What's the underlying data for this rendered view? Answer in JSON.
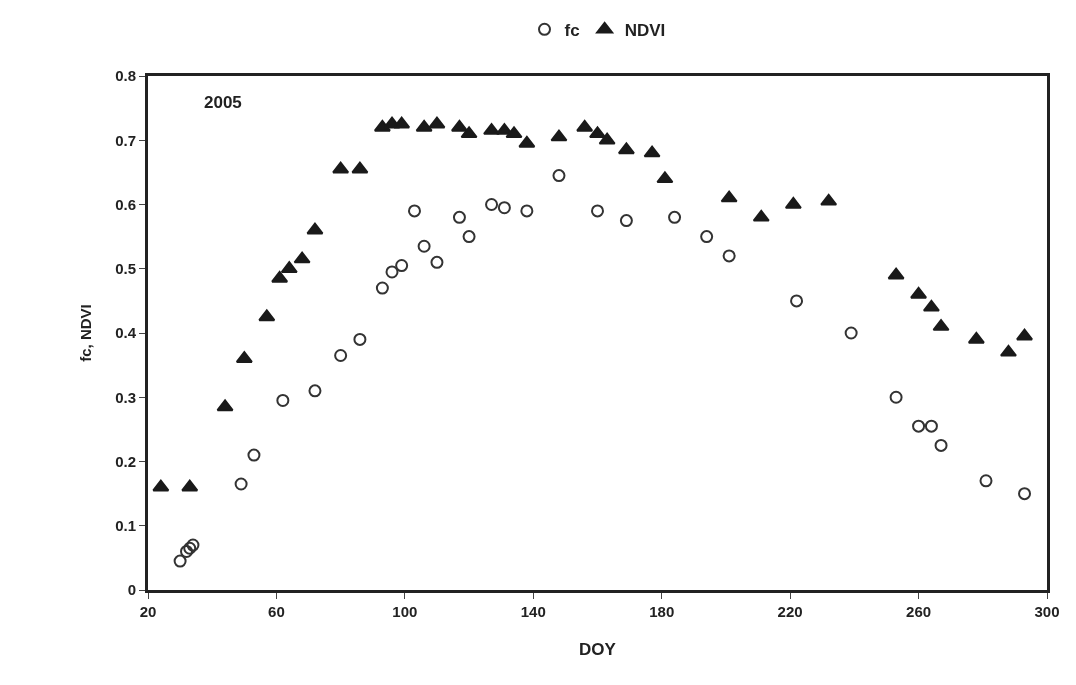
{
  "chart_data": {
    "type": "scatter",
    "xlabel": "DOY",
    "ylabel": "fc, NDVI",
    "annotations": [
      "2005"
    ],
    "xlim": [
      20,
      300
    ],
    "xticks": [
      20,
      60,
      100,
      140,
      180,
      220,
      260,
      300
    ],
    "ylim": [
      0,
      0.8
    ],
    "yticks": [
      0,
      0.1,
      0.2,
      0.3,
      0.4,
      0.5,
      0.6,
      0.7,
      0.8
    ],
    "grid": false,
    "legend": "top",
    "series": [
      {
        "name": "fc",
        "color": "#333333",
        "marker": "circle",
        "x": [
          30,
          32,
          33,
          34,
          49,
          53,
          62,
          72,
          80,
          86,
          93,
          96,
          99,
          103,
          106,
          110,
          117,
          120,
          127,
          131,
          138,
          148,
          160,
          169,
          184,
          194,
          201,
          222,
          239,
          253,
          260,
          264,
          267,
          281,
          293
        ],
        "values": [
          0.045,
          0.06,
          0.065,
          0.07,
          0.165,
          0.21,
          0.295,
          0.31,
          0.365,
          0.39,
          0.47,
          0.495,
          0.505,
          0.59,
          0.535,
          0.51,
          0.58,
          0.55,
          0.6,
          0.595,
          0.59,
          0.645,
          0.59,
          0.575,
          0.58,
          0.55,
          0.52,
          0.45,
          0.4,
          0.3,
          0.255,
          0.255,
          0.225,
          0.17,
          0.15
        ]
      },
      {
        "name": "NDVI",
        "color": "#1a1a1a",
        "marker": "triangle",
        "x": [
          24,
          33,
          44,
          50,
          57,
          61,
          64,
          68,
          72,
          80,
          86,
          93,
          96,
          99,
          106,
          110,
          117,
          120,
          127,
          131,
          134,
          138,
          148,
          156,
          160,
          163,
          169,
          177,
          181,
          201,
          211,
          221,
          232,
          253,
          260,
          264,
          267,
          278,
          288,
          293
        ],
        "values": [
          0.16,
          0.16,
          0.285,
          0.36,
          0.425,
          0.485,
          0.5,
          0.515,
          0.56,
          0.655,
          0.655,
          0.72,
          0.725,
          0.725,
          0.72,
          0.725,
          0.72,
          0.71,
          0.715,
          0.715,
          0.71,
          0.695,
          0.705,
          0.72,
          0.71,
          0.7,
          0.685,
          0.68,
          0.64,
          0.61,
          0.58,
          0.6,
          0.605,
          0.49,
          0.46,
          0.44,
          0.41,
          0.39,
          0.37,
          0.395
        ]
      }
    ]
  }
}
